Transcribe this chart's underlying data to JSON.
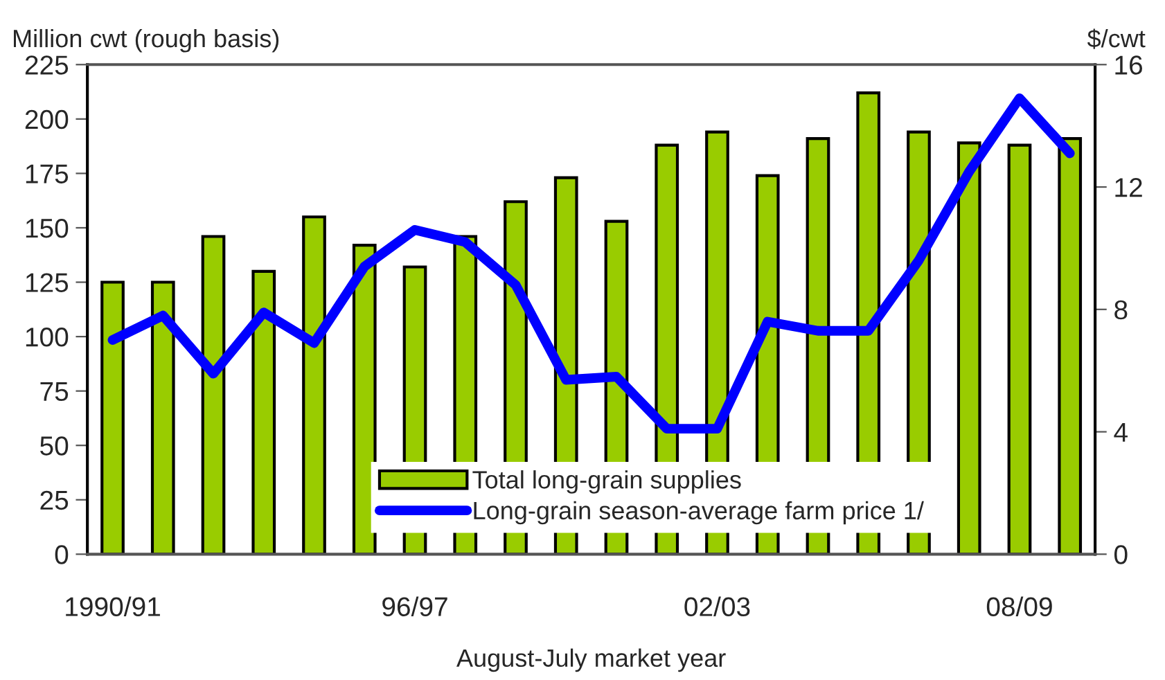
{
  "chart_data": {
    "type": "bar",
    "ylabel": "Million cwt (rough basis)",
    "y2label": "$/cwt",
    "xlabel": "August-July market year",
    "categories": [
      "1990/91",
      null,
      null,
      null,
      null,
      null,
      "96/97",
      null,
      null,
      null,
      null,
      null,
      "02/03",
      null,
      null,
      null,
      null,
      null,
      "08/09",
      null
    ],
    "series": [
      {
        "name": "Total long-grain supplies",
        "color": "#99cc00",
        "values": [
          125,
          125,
          146,
          130,
          155,
          142,
          132,
          146,
          162,
          173,
          153,
          188,
          194,
          174,
          191,
          212,
          194,
          189,
          188,
          191
        ]
      },
      {
        "name": "Long-grain season-average farm price 1/",
        "type": "line",
        "axis": "y2",
        "color": "#0000ff",
        "values": [
          7.0,
          7.8,
          5.9,
          7.9,
          6.9,
          9.4,
          10.6,
          10.2,
          8.8,
          5.7,
          5.8,
          4.1,
          4.1,
          7.6,
          7.3,
          7.3,
          9.6,
          12.5,
          14.9,
          13.1
        ]
      }
    ],
    "ylim": [
      0,
      225
    ],
    "yticks": [
      0,
      25,
      50,
      75,
      100,
      125,
      150,
      175,
      200,
      225
    ],
    "y2lim": [
      0,
      16
    ],
    "y2ticks": [
      0,
      4,
      8,
      12,
      16
    ],
    "legend": "bottom",
    "grid": false,
    "marker": "none",
    "line_style": "solid"
  }
}
